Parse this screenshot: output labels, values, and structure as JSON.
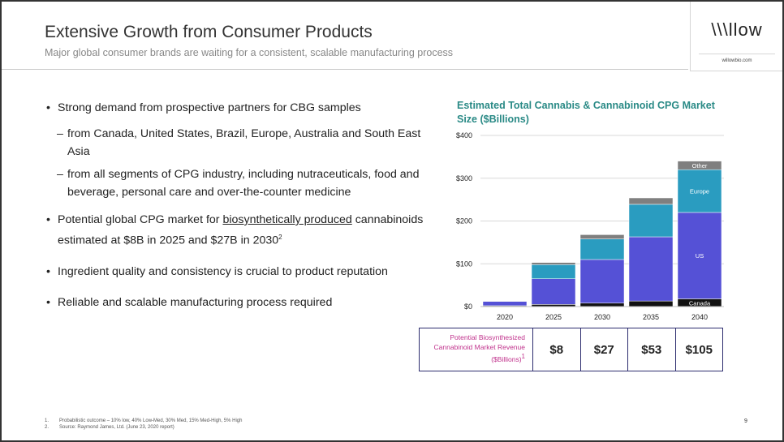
{
  "header": {
    "title": "Extensive Growth from Consumer Products",
    "subtitle": "Major global consumer brands are waiting for a consistent, scalable manufacturing process",
    "logo_text": "\\\\\\llow",
    "logo_url": "willowbio.com"
  },
  "bullets": {
    "b1": "Strong demand from prospective partners for CBG samples",
    "b1_sub1": "from Canada, United States, Brazil, Europe, Australia and South East Asia",
    "b1_sub2": "from all segments of CPG industry, including nutraceuticals, food and beverage, personal care and over-the-counter medicine",
    "b2_pre": "Potential global CPG market for ",
    "b2_underlined": "biosynthetically produced",
    "b2_post": " cannabinoids estimated at $8B in 2025 and $27B in 2030",
    "b2_sup": "2",
    "b3": "Ingredient quality and consistency is crucial to product reputation",
    "b4": "Reliable and scalable manufacturing process required"
  },
  "chart_data": {
    "type": "bar",
    "stacked": true,
    "title": "Estimated Total Cannabis & Cannabinoid CPG Market Size ($Billions)",
    "categories": [
      "2020",
      "2025",
      "2030",
      "2035",
      "2040"
    ],
    "ylim": [
      0,
      400
    ],
    "yticks": [
      "$0",
      "$100",
      "$200",
      "$300",
      "$400"
    ],
    "series": [
      {
        "name": "Canada",
        "color": "#111111",
        "values": [
          2,
          5,
          8,
          13,
          18
        ]
      },
      {
        "name": "US",
        "color": "#5551d6",
        "values": [
          10,
          60,
          102,
          150,
          202
        ]
      },
      {
        "name": "Europe",
        "color": "#2a9cc0",
        "values": [
          0,
          33,
          48,
          76,
          100
        ]
      },
      {
        "name": "Other",
        "color": "#7f7f7f",
        "values": [
          1,
          5,
          10,
          15,
          20
        ]
      }
    ],
    "grid": true
  },
  "revenue": {
    "label_line1": "Potential Biosynthesized",
    "label_line2": "Cannabinoid Market Revenue",
    "label_line3": "($Billions)",
    "label_sup": "1",
    "values": [
      "$8",
      "$27",
      "$53",
      "$105"
    ]
  },
  "footnotes": {
    "n1": "1.",
    "f1": "Probabilistic outcome – 10% low, 40% Low-Med, 30% Med, 15% Med-High, 5% High",
    "n2": "2.",
    "f2": "Source: Raymond James, Ltd. (June 23, 2020 report)"
  },
  "page_number": "9"
}
